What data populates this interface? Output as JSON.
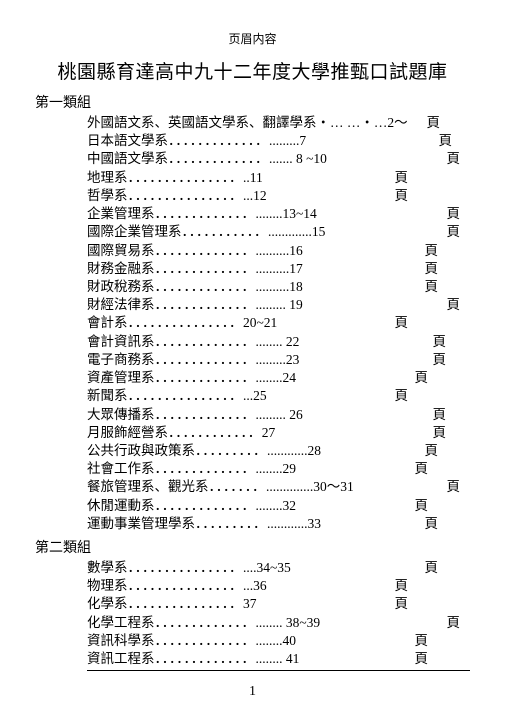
{
  "header_label": "页眉内容",
  "title": "桃園縣育達高中九十二年度大學推甄口試題庫",
  "page_number": "1",
  "page_unit": "頁",
  "sections": [
    {
      "label": "第一類組",
      "items": [
        {
          "name": "外國語文系、英國語文學系、翻譯學系",
          "dots": "",
          "pg": "・… …・…2～",
          "ye_right": 30
        },
        {
          "name": "日本語文學系",
          "dots": "．．．．．．．．．．．．．",
          "pg": " .........7",
          "ye_right": 18
        },
        {
          "name": "中國語文學系",
          "dots": "．．．．．．．．．．．．．",
          "pg": " ....... 8 ~10",
          "ye_right": 10
        },
        {
          "name": "地理系",
          "dots": "．．．．．．．．．．．．．．．",
          "pg": "  ..11",
          "ye_right": 62
        },
        {
          "name": "哲學系",
          "dots": "．．．．．．．．．．．．．．．",
          "pg": "  ...12",
          "ye_right": 62
        },
        {
          "name": "企業管理系",
          "dots": "．．．．．．．．．．．．．",
          "pg": " ........13~14",
          "ye_right": 10
        },
        {
          "name": "國際企業管理系",
          "dots": "．．．．．．．．．．．",
          "pg": " .............15",
          "ye_right": 10
        },
        {
          "name": "國際貿易系",
          "dots": "．．．．．．．．．．．．．",
          "pg": " ..........16",
          "ye_right": 32
        },
        {
          "name": "財務金融系",
          "dots": "．．．．．．．．．．．．．",
          "pg": " ..........17",
          "ye_right": 32
        },
        {
          "name": "財政稅務系",
          "dots": "．．．．．．．．．．．．．",
          "pg": " ..........18",
          "ye_right": 32
        },
        {
          "name": "財經法律系",
          "dots": "．．．．．．．．．．．．．",
          "pg": " .........   19",
          "ye_right": 10
        },
        {
          "name": "會計系",
          "dots": "．．．．．．．．．．．．．．．",
          "pg": " 20~21",
          "ye_right": 62
        },
        {
          "name": "會計資訊系",
          "dots": "．．．．．．．．．．．．．",
          "pg": " ........ 22",
          "ye_right": 24
        },
        {
          "name": "電子商務系",
          "dots": "．．．．．．．．．．．．．",
          "pg": " .........23",
          "ye_right": 24
        },
        {
          "name": "資產管理系",
          "dots": "．．．．．．．．．．．．．",
          "pg": " ........24",
          "ye_right": 42
        },
        {
          "name": "新聞系",
          "dots": "．．．．．．．．．．．．．．．",
          "pg": "  ...25",
          "ye_right": 62
        },
        {
          "name": "大眾傳播系",
          "dots": "．．．．．．．．．．．．．",
          "pg": " ......... 26",
          "ye_right": 24
        },
        {
          "name": "月服飾經營系",
          "dots": "．．．．．．．．．．．．",
          "pg": "    27",
          "ye_right": 24
        },
        {
          "name": "公共行政與政策系",
          "dots": "．．．．．．．．．",
          "pg": " ............28",
          "ye_right": 32
        },
        {
          "name": "社會工作系",
          "dots": "．．．．．．．．．．．．．",
          "pg": " ........29",
          "ye_right": 42
        },
        {
          "name": "餐旅管理系、觀光系",
          "dots": "．．．．．．．",
          "pg": " ..............30～31",
          "ye_right": 10
        },
        {
          "name": "休閒運動系",
          "dots": "．．．．．．．．．．．．．",
          "pg": " ........32",
          "ye_right": 42
        },
        {
          "name": "運動事業管理學系",
          "dots": "．．．．．．．．．",
          "pg": " ............33",
          "ye_right": 32
        }
      ]
    },
    {
      "label": "第二類組",
      "items": [
        {
          "name": "數學系",
          "dots": "．．．．．．．．．．．．．．．",
          "pg": "  ....34~35",
          "ye_right": 32
        },
        {
          "name": "物理系",
          "dots": "．．．．．．．．．．．．．．．",
          "pg": "  ...36",
          "ye_right": 62
        },
        {
          "name": "化學系",
          "dots": "．．．．．．．．．．．．．．．",
          "pg": "     37",
          "ye_right": 62
        },
        {
          "name": "化學工程系",
          "dots": "．．．．．．．．．．．．．",
          "pg": " ........ 38~39",
          "ye_right": 10
        },
        {
          "name": "資訊科學系",
          "dots": "．．．．．．．．．．．．．",
          "pg": " ........40",
          "ye_right": 42
        },
        {
          "name": "資訊工程系",
          "dots": "．．．．．．．．．．．．．",
          "pg": " ........ 41",
          "ye_right": 42
        }
      ]
    }
  ]
}
